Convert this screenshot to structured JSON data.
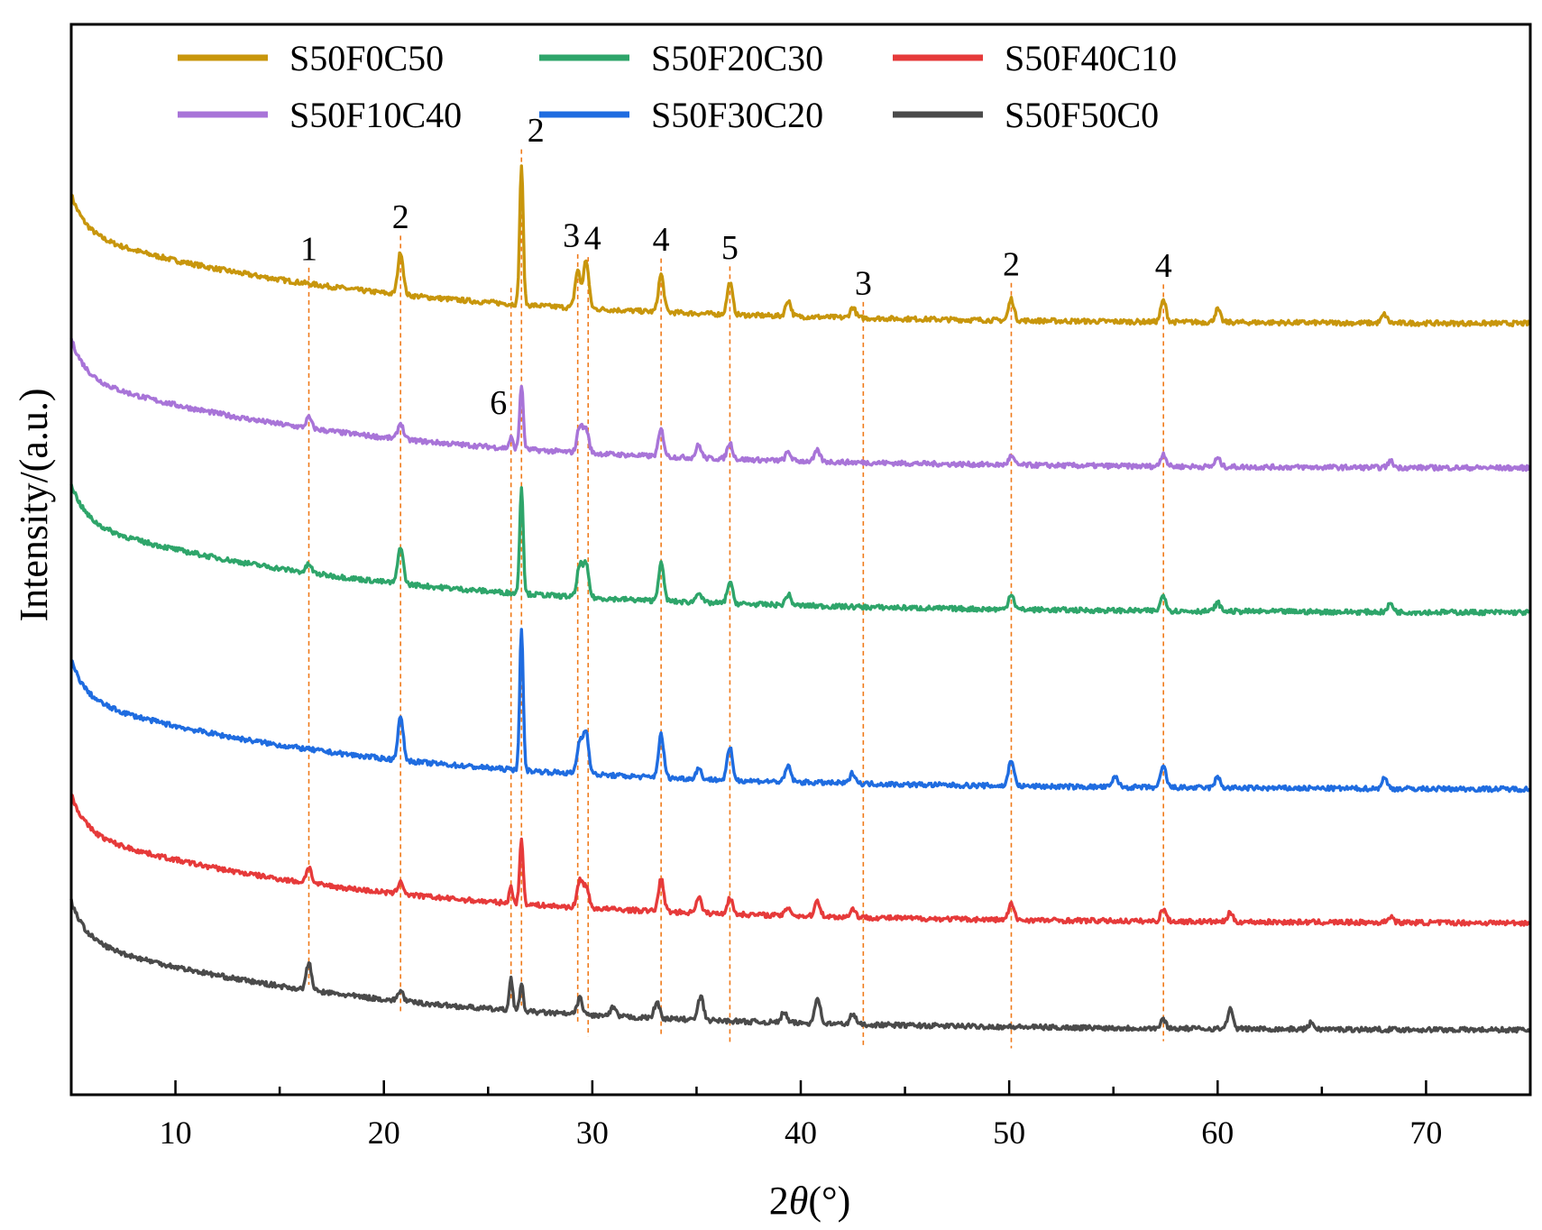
{
  "chart_data": {
    "type": "line",
    "title": "",
    "xlabel": "2θ(°)",
    "xlabel_parts": {
      "prefix": "2",
      "theta": "θ",
      "suffix": "(°)"
    },
    "ylabel": "Intensity/(a.u.)",
    "xlim": [
      5,
      75
    ],
    "ylim": [
      0,
      1
    ],
    "xticks": [
      10,
      20,
      30,
      40,
      50,
      60,
      70
    ],
    "grid": false,
    "legend_position": "top",
    "series": [
      {
        "name": "S50F0C50",
        "color": "#C8960C",
        "baseline": 0.72,
        "peaks": [
          [
            20.8,
            0.04
          ],
          [
            26.6,
            0.13
          ],
          [
            29.3,
            0.035
          ],
          [
            29.7,
            0.045
          ],
          [
            33.3,
            0.035
          ],
          [
            36.6,
            0.03
          ],
          [
            39.4,
            0.015
          ],
          [
            42.5,
            0.01
          ],
          [
            50.1,
            0.02
          ],
          [
            57.4,
            0.02
          ],
          [
            60.0,
            0.012
          ],
          [
            68.0,
            0.008
          ]
        ]
      },
      {
        "name": "S50F10C40",
        "color": "#A874D8",
        "baseline": 0.585,
        "peaks": [
          [
            16.4,
            0.01
          ],
          [
            20.8,
            0.015
          ],
          [
            26.1,
            0.01
          ],
          [
            26.6,
            0.06
          ],
          [
            29.4,
            0.025
          ],
          [
            29.7,
            0.022
          ],
          [
            33.3,
            0.025
          ],
          [
            35.1,
            0.012
          ],
          [
            36.6,
            0.015
          ],
          [
            39.4,
            0.008
          ],
          [
            40.8,
            0.01
          ],
          [
            50.1,
            0.008
          ],
          [
            57.4,
            0.012
          ],
          [
            60.0,
            0.008
          ],
          [
            68.3,
            0.006
          ]
        ]
      },
      {
        "name": "S50F20C30",
        "color": "#2EA56A",
        "baseline": 0.45,
        "peaks": [
          [
            16.4,
            0.008
          ],
          [
            20.8,
            0.035
          ],
          [
            26.6,
            0.1
          ],
          [
            29.4,
            0.03
          ],
          [
            29.7,
            0.03
          ],
          [
            33.3,
            0.035
          ],
          [
            35.1,
            0.01
          ],
          [
            36.6,
            0.02
          ],
          [
            39.4,
            0.01
          ],
          [
            50.1,
            0.015
          ],
          [
            57.4,
            0.015
          ],
          [
            60.0,
            0.008
          ],
          [
            68.3,
            0.008
          ]
        ]
      },
      {
        "name": "S50F30C20",
        "color": "#1F6CE0",
        "baseline": 0.285,
        "peaks": [
          [
            20.8,
            0.04
          ],
          [
            26.6,
            0.13
          ],
          [
            29.4,
            0.03
          ],
          [
            29.7,
            0.04
          ],
          [
            33.3,
            0.04
          ],
          [
            35.1,
            0.01
          ],
          [
            36.6,
            0.03
          ],
          [
            39.4,
            0.015
          ],
          [
            42.5,
            0.01
          ],
          [
            50.1,
            0.025
          ],
          [
            55.1,
            0.01
          ],
          [
            57.4,
            0.02
          ],
          [
            60.0,
            0.01
          ],
          [
            68.0,
            0.01
          ]
        ]
      },
      {
        "name": "S50F40C10",
        "color": "#E63A3A",
        "baseline": 0.16,
        "peaks": [
          [
            16.4,
            0.015
          ],
          [
            20.8,
            0.012
          ],
          [
            26.1,
            0.015
          ],
          [
            26.6,
            0.06
          ],
          [
            29.4,
            0.025
          ],
          [
            29.7,
            0.02
          ],
          [
            33.3,
            0.03
          ],
          [
            35.1,
            0.015
          ],
          [
            36.6,
            0.015
          ],
          [
            39.4,
            0.008
          ],
          [
            40.8,
            0.015
          ],
          [
            42.5,
            0.008
          ],
          [
            50.1,
            0.015
          ],
          [
            57.4,
            0.012
          ],
          [
            60.6,
            0.008
          ],
          [
            68.3,
            0.006
          ]
        ]
      },
      {
        "name": "S50F50C0",
        "color": "#4A4A4A",
        "baseline": 0.06,
        "peaks": [
          [
            16.4,
            0.025
          ],
          [
            20.8,
            0.01
          ],
          [
            26.1,
            0.03
          ],
          [
            26.6,
            0.025
          ],
          [
            29.4,
            0.015
          ],
          [
            31.0,
            0.008
          ],
          [
            33.1,
            0.015
          ],
          [
            35.2,
            0.022
          ],
          [
            39.2,
            0.01
          ],
          [
            40.8,
            0.025
          ],
          [
            42.5,
            0.01
          ],
          [
            57.4,
            0.008
          ],
          [
            60.6,
            0.018
          ],
          [
            64.5,
            0.006
          ]
        ]
      }
    ],
    "annotations": [
      {
        "label": "1",
        "x": 16.4
      },
      {
        "label": "2",
        "x": 20.8
      },
      {
        "label": "2",
        "x": 26.6
      },
      {
        "label": "3",
        "x": 29.3
      },
      {
        "label": "4",
        "x": 29.8
      },
      {
        "label": "4",
        "x": 33.3
      },
      {
        "label": "5",
        "x": 36.6
      },
      {
        "label": "3",
        "x": 43.0
      },
      {
        "label": "2",
        "x": 50.1
      },
      {
        "label": "4",
        "x": 57.4
      },
      {
        "label": "6",
        "x": 26.1
      }
    ]
  }
}
